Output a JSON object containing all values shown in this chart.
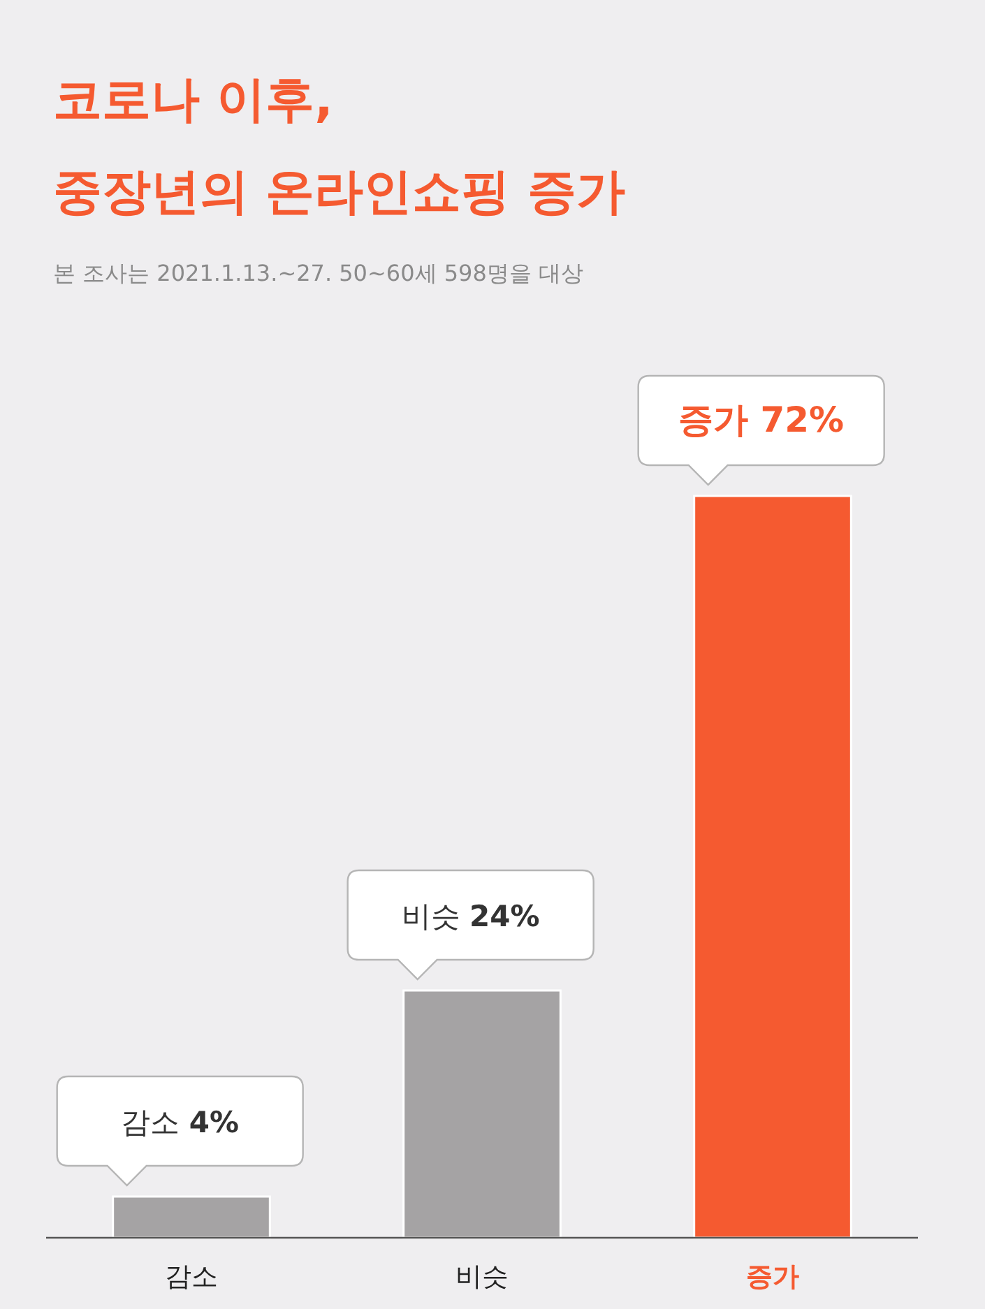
{
  "chart_data": {
    "type": "bar",
    "title": "코로나 이후,\n중장년의 온라인쇼핑 증가",
    "subtitle": "본 조사는 2021.1.13.~27. 50~60세 598명을 대상",
    "categories": [
      "감소",
      "비슷",
      "증가"
    ],
    "values": [
      4,
      24,
      72
    ],
    "colors": [
      "#a5a3a4",
      "#a5a3a4",
      "#f55a30"
    ],
    "value_labels": [
      "감소 4%",
      "비슷 24%",
      "증가 72%"
    ]
  }
}
